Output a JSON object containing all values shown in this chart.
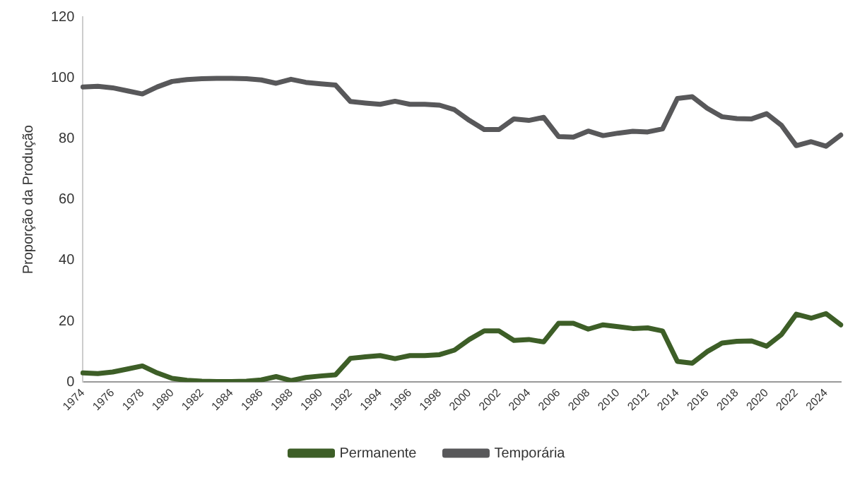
{
  "chart_data": {
    "type": "line",
    "ylabel": "Proporção da Produção",
    "categories": [
      "1974",
      null,
      "1976",
      null,
      "1978",
      null,
      "1980",
      null,
      "1982",
      null,
      "1984",
      null,
      "1986",
      null,
      "1988",
      null,
      "1990",
      null,
      "1992",
      null,
      "1994",
      null,
      "1996",
      null,
      "1998",
      null,
      "2000",
      null,
      "2002",
      null,
      "2004",
      null,
      "2006",
      null,
      "2008",
      null,
      "2010",
      null,
      "2012",
      null,
      "2014",
      null,
      "2016",
      null,
      "2018",
      null,
      "2020",
      null,
      "2022",
      null,
      "2024",
      null
    ],
    "series": [
      {
        "name": "Permanente",
        "color": "#3d5e27",
        "values": [
          3,
          2.8,
          3.3,
          4.3,
          5.3,
          3,
          1.2,
          0.6,
          0.3,
          0.2,
          0.2,
          0.3,
          0.7,
          1.8,
          0.5,
          1.5,
          2,
          2.4,
          7.8,
          8.3,
          8.7,
          7.7,
          8.7,
          8.7,
          9,
          10.5,
          14,
          16.8,
          16.8,
          13.7,
          14,
          13.2,
          19.3,
          19.3,
          17.4,
          18.8,
          18.2,
          17.6,
          17.8,
          16.8,
          6.8,
          6.2,
          10,
          12.8,
          13.4,
          13.5,
          11.8,
          15.6,
          22.3,
          21,
          22.5,
          18.8
        ]
      },
      {
        "name": "Temporária",
        "color": "#58585a",
        "values": [
          97,
          97.2,
          96.7,
          95.7,
          94.7,
          97,
          98.8,
          99.4,
          99.7,
          99.8,
          99.8,
          99.7,
          99.3,
          98.2,
          99.5,
          98.5,
          98,
          97.6,
          92.2,
          91.7,
          91.3,
          92.3,
          91.3,
          91.3,
          91,
          89.5,
          86,
          83,
          83,
          86.5,
          86,
          87,
          80.7,
          80.5,
          82.5,
          81,
          81.8,
          82.4,
          82.2,
          83.2,
          93.2,
          93.8,
          90,
          87.2,
          86.6,
          86.5,
          88.2,
          84.4,
          77.7,
          79,
          77.5,
          81.2
        ]
      }
    ],
    "ylim": [
      0,
      120
    ],
    "yticks": [
      0,
      20,
      40,
      60,
      80,
      100,
      120
    ],
    "grid": false,
    "legend": "bottom",
    "marker": "none",
    "line_style": "solid"
  }
}
